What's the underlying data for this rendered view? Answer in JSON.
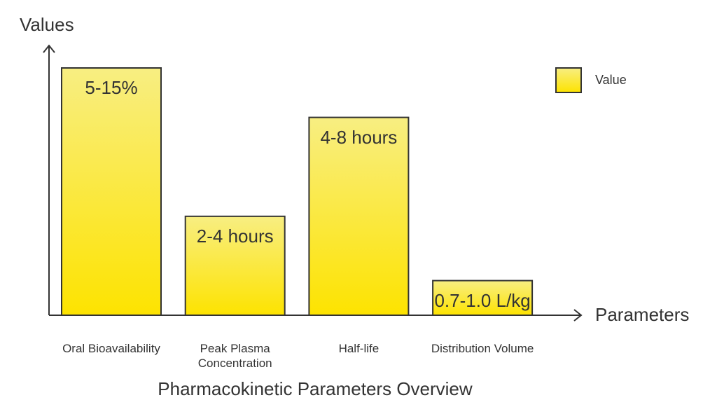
{
  "chart_data": {
    "type": "bar",
    "title": "Pharmacokinetic Parameters Overview",
    "x_label": "Parameters",
    "y_label": "Values",
    "categories": [
      "Oral Bioavailability",
      "Peak Plasma Concentration",
      "Half-life",
      "Distribution Volume"
    ],
    "series": [
      {
        "name": "Value",
        "color": "#fbe31b",
        "values": [
          100,
          40,
          80,
          14
        ],
        "value_labels": [
          "5-15%",
          "2-4 hours",
          "4-8 hours",
          "0.7-1.0 L/kg"
        ]
      }
    ],
    "ylim": [
      0,
      100
    ],
    "legend": "top-right"
  }
}
